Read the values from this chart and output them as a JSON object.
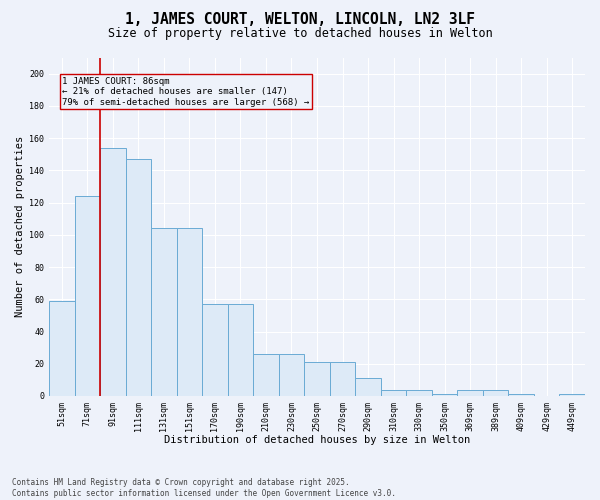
{
  "title": "1, JAMES COURT, WELTON, LINCOLN, LN2 3LF",
  "subtitle": "Size of property relative to detached houses in Welton",
  "xlabel": "Distribution of detached houses by size in Welton",
  "ylabel": "Number of detached properties",
  "bar_labels": [
    "51sqm",
    "71sqm",
    "91sqm",
    "111sqm",
    "131sqm",
    "151sqm",
    "170sqm",
    "190sqm",
    "210sqm",
    "230sqm",
    "250sqm",
    "270sqm",
    "290sqm",
    "310sqm",
    "330sqm",
    "350sqm",
    "369sqm",
    "389sqm",
    "409sqm",
    "429sqm",
    "449sqm"
  ],
  "bar_values": [
    59,
    124,
    154,
    147,
    104,
    104,
    57,
    57,
    26,
    26,
    21,
    21,
    11,
    4,
    4,
    1,
    4,
    4,
    1,
    0,
    1
  ],
  "bar_color": "#ddeaf7",
  "bar_edge_color": "#6aaad4",
  "vline_x": 1.5,
  "vline_color": "#cc0000",
  "box_edge_color": "#cc0000",
  "annotation_line1": "1 JAMES COURT: 86sqm",
  "annotation_line2": "← 21% of detached houses are smaller (147)",
  "annotation_line3": "79% of semi-detached houses are larger (568) →",
  "ylim": [
    0,
    210
  ],
  "yticks": [
    0,
    20,
    40,
    60,
    80,
    100,
    120,
    140,
    160,
    180,
    200
  ],
  "footnote1": "Contains HM Land Registry data © Crown copyright and database right 2025.",
  "footnote2": "Contains public sector information licensed under the Open Government Licence v3.0.",
  "background_color": "#eef2fa",
  "title_fontsize": 10.5,
  "subtitle_fontsize": 8.5,
  "label_fontsize": 7.5,
  "tick_fontsize": 6,
  "annot_fontsize": 6.5,
  "footnote_fontsize": 5.5
}
